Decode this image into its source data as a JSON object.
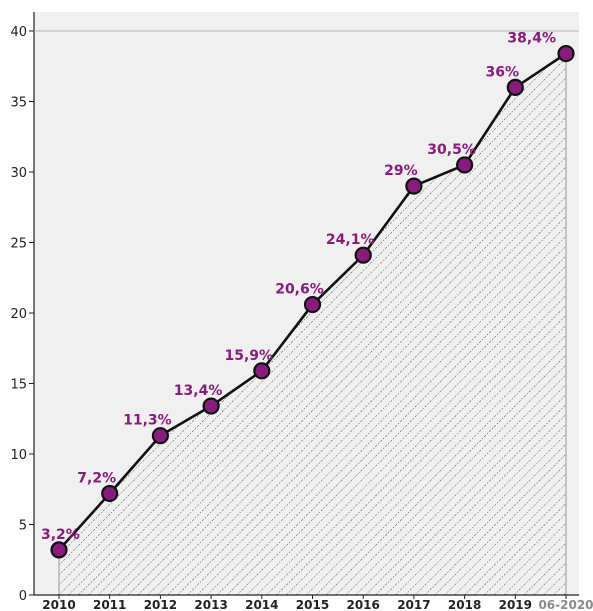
{
  "chart_data": {
    "type": "area",
    "categories": [
      "2010",
      "2011",
      "2012",
      "2013",
      "2014",
      "2015",
      "2016",
      "2017",
      "2018",
      "2019",
      "06-2020"
    ],
    "values": [
      3.2,
      7.2,
      11.3,
      13.4,
      15.9,
      20.6,
      24.1,
      29,
      30.5,
      36,
      38.4
    ],
    "data_labels": [
      "3,2%",
      "7,2%",
      "11,3%",
      "13,4%",
      "15,9%",
      "20,6%",
      "24,1%",
      "29%",
      "30,5%",
      "36%",
      "38,4%"
    ],
    "yticks": [
      "0",
      "5",
      "10",
      "15",
      "20",
      "25",
      "30",
      "35",
      "40"
    ],
    "ylim": [
      0,
      40
    ],
    "title": "",
    "xlabel": "",
    "ylabel": "",
    "grid": false,
    "plot_background": "hatched",
    "colors": {
      "line": "#111111",
      "marker_fill": "#8b1a7e",
      "label": "#8b1a7e",
      "plot_bg": "#f0f0f0",
      "hatch": "#555555"
    }
  }
}
